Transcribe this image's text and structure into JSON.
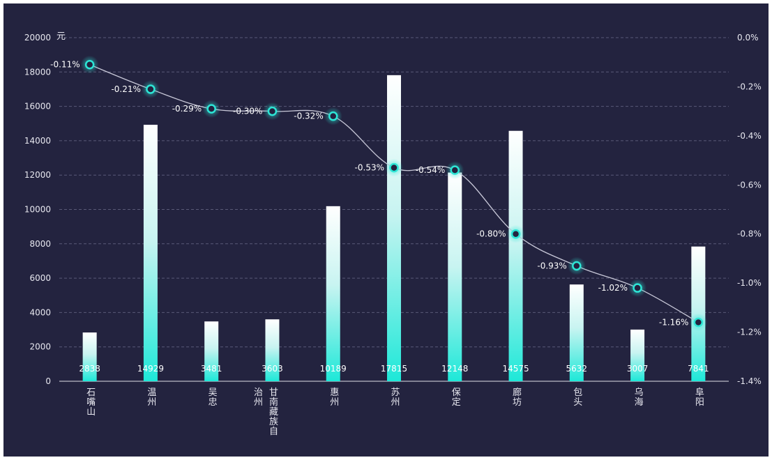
{
  "chart_data": {
    "type": "bar",
    "categories": [
      "石嘴山",
      "温州",
      "吴忠",
      "甘南藏族自治州",
      "惠州",
      "苏州",
      "保定",
      "廊坊",
      "包头",
      "乌海",
      "阜阳"
    ],
    "series": [
      {
        "type": "bar",
        "values": [
          2838,
          14929,
          3481,
          3603,
          10189,
          17815,
          12148,
          14575,
          5632,
          3007,
          7841
        ]
      },
      {
        "type": "line",
        "axis": "right",
        "values": [
          -0.11,
          -0.21,
          -0.29,
          -0.3,
          -0.32,
          -0.53,
          -0.54,
          -0.8,
          -0.93,
          -1.02,
          -1.16
        ],
        "labels": [
          "-0.11%",
          "-0.21%",
          "-0.29%",
          "-0.30%",
          "-0.32%",
          "-0.53%",
          "-0.54%",
          "-0.80%",
          "-0.93%",
          "-1.02%",
          "-1.16%"
        ]
      }
    ],
    "y_left": {
      "unit": "元",
      "ylim": [
        0,
        20000
      ],
      "ticks": [
        "0",
        "2000",
        "4000",
        "6000",
        "8000",
        "10000",
        "12000",
        "14000",
        "16000",
        "18000",
        "20000"
      ]
    },
    "y_right": {
      "ylim": [
        -1.4,
        0
      ],
      "ticks": [
        "0.0%",
        "-0.2%",
        "-0.4%",
        "-0.6%",
        "-0.8%",
        "-1.0%",
        "-1.2%",
        "-1.4%"
      ]
    },
    "grid": true,
    "colors": {
      "background": "#23233f",
      "bar_top": "#ffffff",
      "bar_bottom": "#1ee8d8",
      "line": "#c8c8d8",
      "marker": "#2de6d6"
    }
  }
}
